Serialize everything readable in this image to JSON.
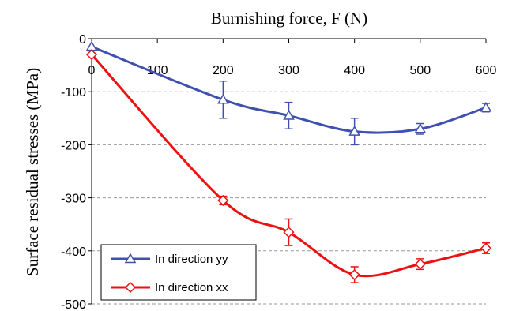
{
  "chart_data": {
    "type": "line",
    "xlabel": "Burnishing force, F (N)",
    "ylabel": "Surface residual stresses (MPa)",
    "xlim": [
      0,
      600
    ],
    "ylim": [
      -500,
      0
    ],
    "x_ticks": [
      "0",
      "100",
      "200",
      "300",
      "400",
      "500",
      "600"
    ],
    "y_ticks": [
      "0",
      "-100",
      "-200",
      "-300",
      "-400",
      "-500"
    ],
    "grid": "horizontal dashed",
    "x_axis_position": "top",
    "legend_position": "bottom-left",
    "series": [
      {
        "name": "In direction yy",
        "color": "#4050B0",
        "marker": "triangle",
        "x": [
          0,
          200,
          300,
          400,
          500,
          600
        ],
        "y": [
          -15,
          -115,
          -145,
          -175,
          -170,
          -130
        ],
        "error": [
          0,
          35,
          25,
          25,
          10,
          8
        ]
      },
      {
        "name": "In direction xx",
        "color": "#EE1111",
        "marker": "diamond",
        "x": [
          0,
          200,
          300,
          400,
          500,
          600
        ],
        "y": [
          -30,
          -305,
          -365,
          -445,
          -425,
          -395
        ],
        "error": [
          0,
          8,
          25,
          15,
          10,
          10
        ]
      }
    ]
  }
}
